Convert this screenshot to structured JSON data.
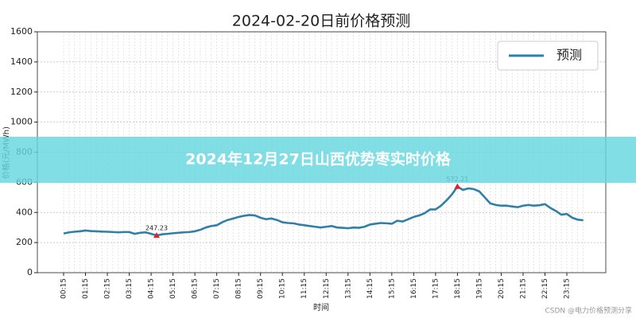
{
  "chart_data": {
    "type": "line",
    "title": "2024-02-20日前价格预测",
    "xlabel": "时间",
    "ylabel": "价格(元/MWh)",
    "x": [
      "00:15",
      null,
      null,
      null,
      "01:15",
      null,
      null,
      null,
      "02:15",
      null,
      null,
      null,
      "03:15",
      null,
      null,
      null,
      "04:15",
      null,
      null,
      null,
      "05:15",
      null,
      null,
      null,
      "06:15",
      null,
      null,
      null,
      "07:15",
      null,
      null,
      null,
      "08:15",
      null,
      null,
      null,
      "09:15",
      null,
      null,
      null,
      "10:15",
      null,
      null,
      null,
      "11:15",
      null,
      null,
      null,
      "12:15",
      null,
      null,
      null,
      "13:15",
      null,
      null,
      null,
      "14:15",
      null,
      null,
      null,
      "15:15",
      null,
      null,
      null,
      "16:15",
      null,
      null,
      null,
      "17:15",
      null,
      null,
      null,
      "18:15",
      null,
      null,
      null,
      "19:15",
      null,
      null,
      null,
      "20:15",
      null,
      null,
      null,
      "21:15",
      null,
      null,
      null,
      "22:15",
      null,
      null,
      null,
      "23:15",
      null,
      null,
      null
    ],
    "series": [
      {
        "name": "预测",
        "color": "#2f7fa8",
        "values": [
          260,
          268,
          272,
          275,
          280,
          276,
          275,
          273,
          272,
          270,
          268,
          270,
          270,
          258,
          265,
          268,
          258,
          247.23,
          255,
          258,
          262,
          265,
          268,
          270,
          275,
          285,
          300,
          310,
          315,
          335,
          350,
          360,
          370,
          378,
          383,
          380,
          365,
          355,
          360,
          350,
          335,
          330,
          328,
          320,
          315,
          310,
          305,
          300,
          305,
          310,
          300,
          298,
          295,
          300,
          298,
          305,
          320,
          325,
          330,
          328,
          325,
          345,
          340,
          355,
          370,
          380,
          395,
          420,
          420,
          445,
          480,
          520,
          572.21,
          550,
          560,
          555,
          540,
          500,
          460,
          450,
          445,
          445,
          440,
          435,
          445,
          450,
          445,
          448,
          455,
          430,
          410,
          385,
          390,
          365,
          352,
          348
        ]
      }
    ],
    "ylim": [
      0,
      1600
    ],
    "yticks": [
      0,
      200,
      400,
      600,
      800,
      1000,
      1200,
      1400,
      1600
    ],
    "grid": true,
    "legend": "upper right",
    "mark_extremes": true,
    "extreme_color": "#d62728"
  },
  "banner": "2024年12月27日山西优势枣实时价格",
  "watermark": "CSDN @电力价格预测分享"
}
